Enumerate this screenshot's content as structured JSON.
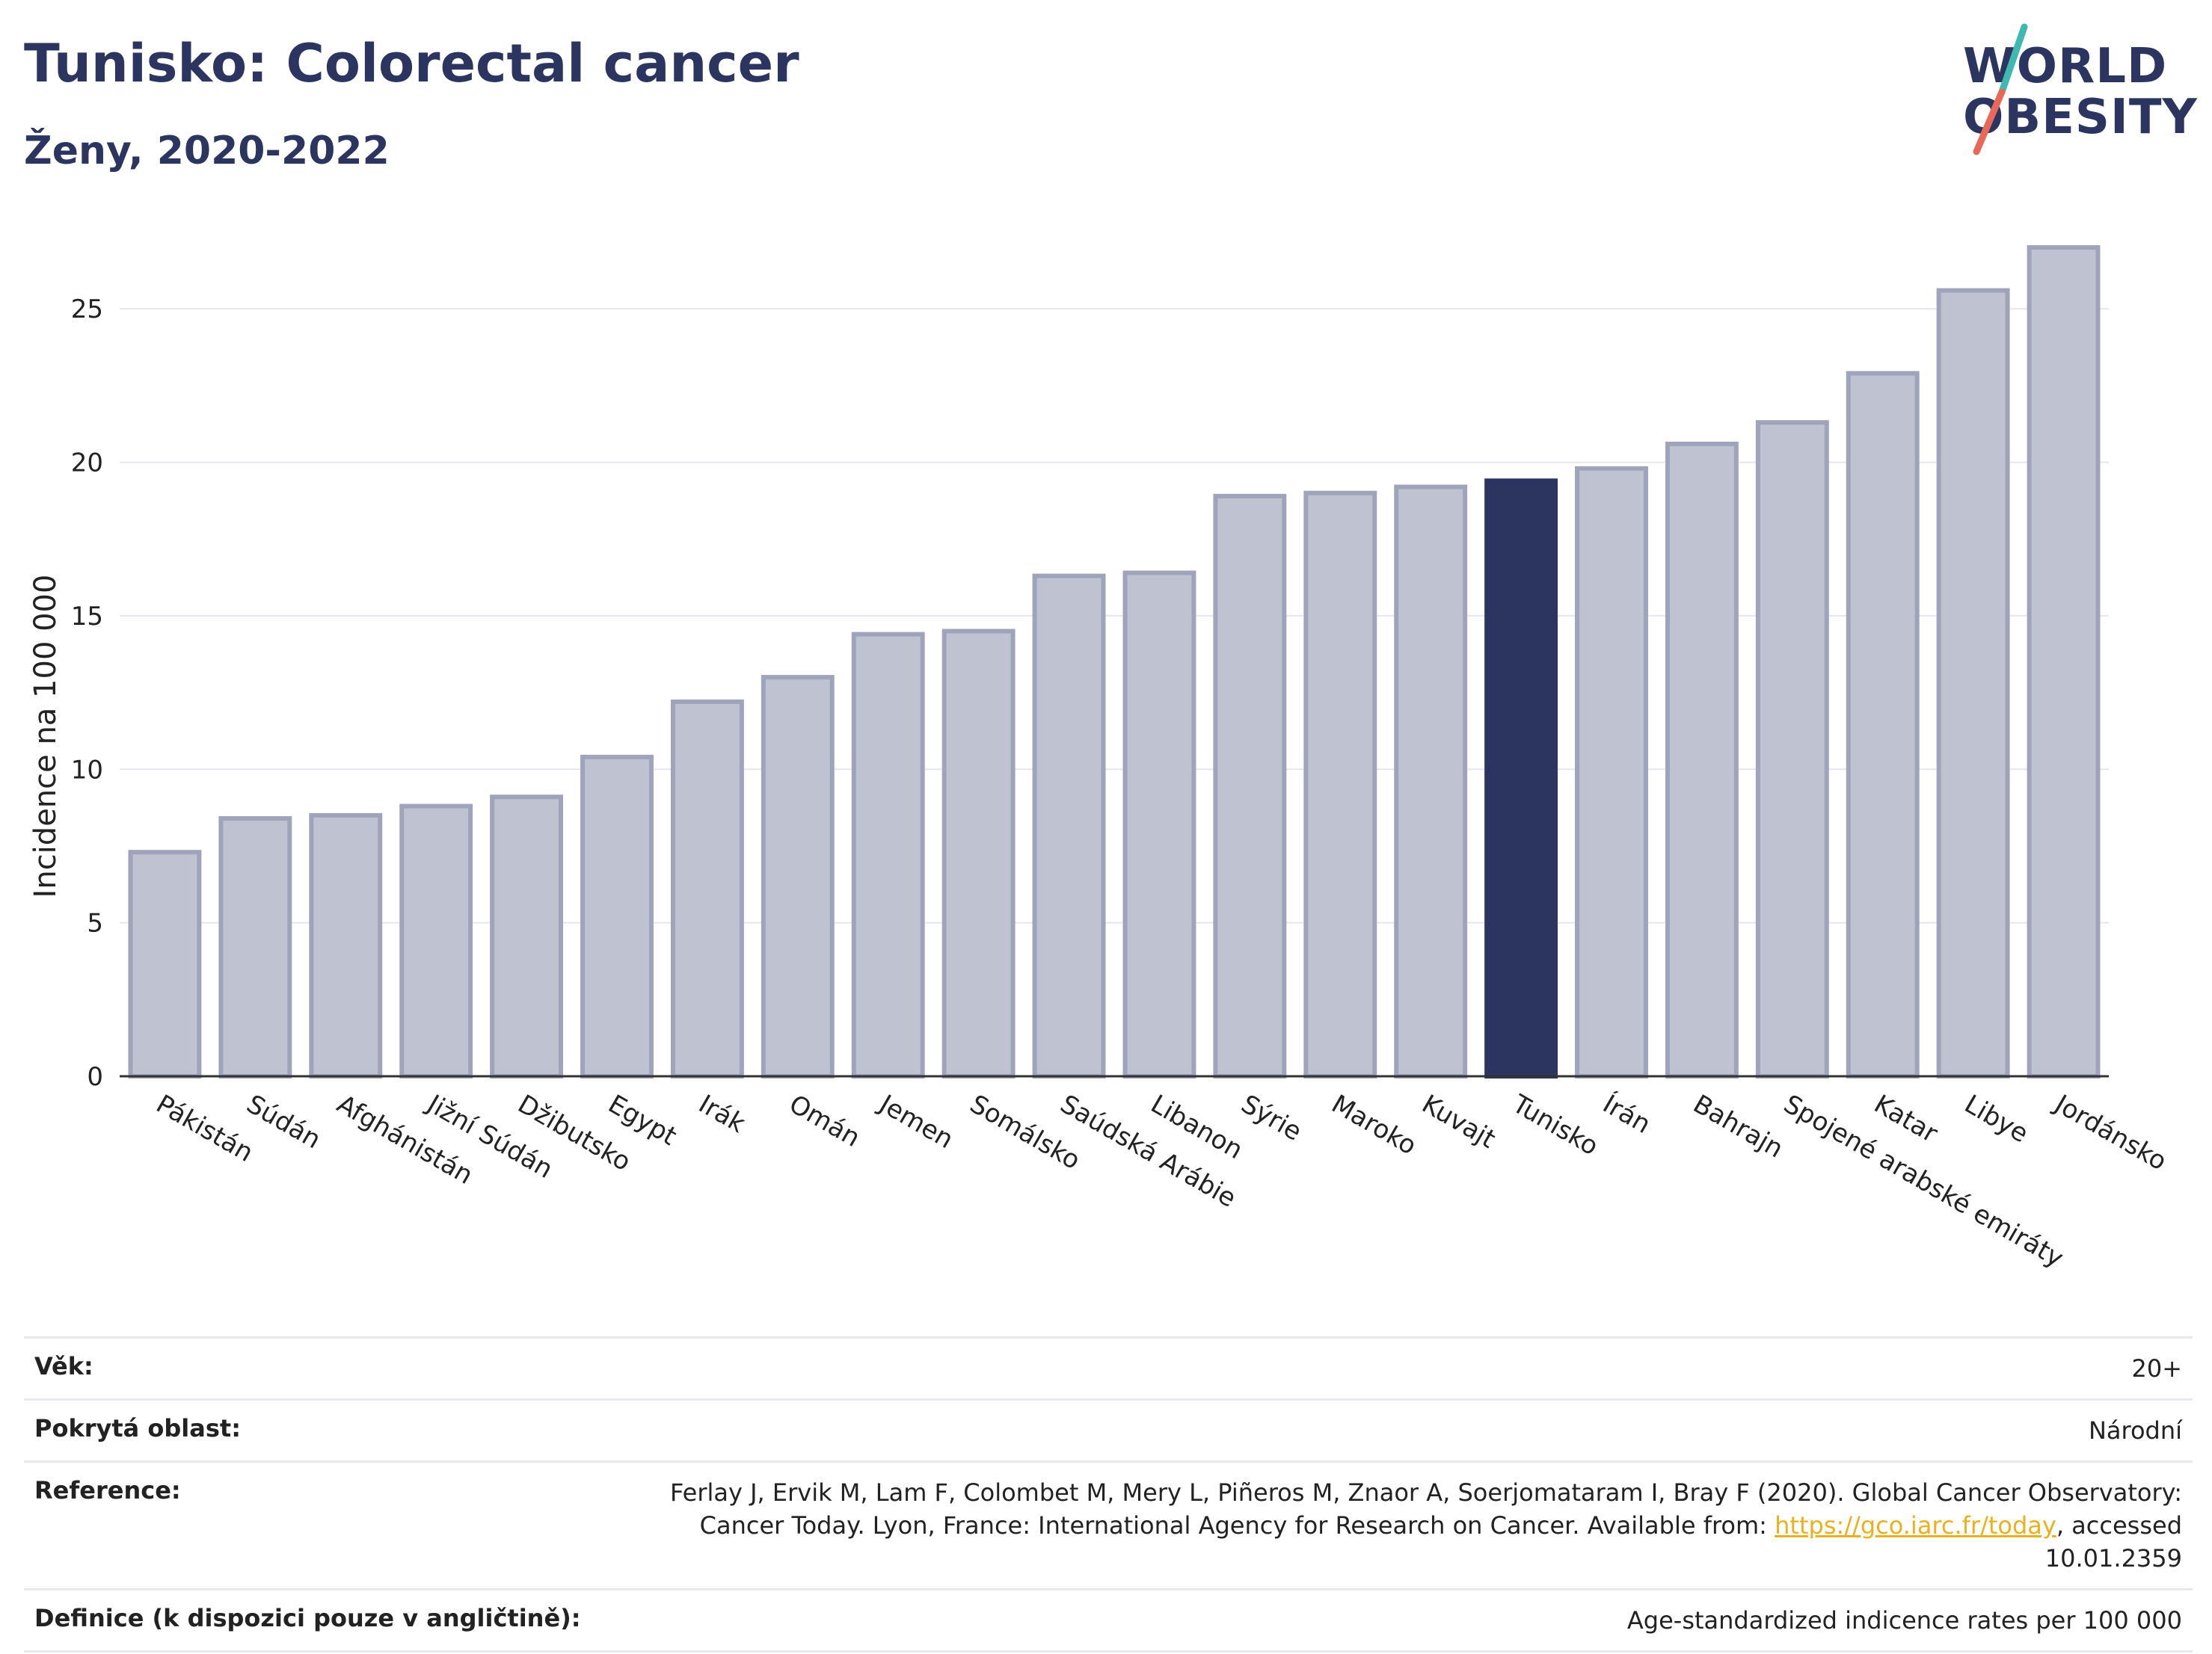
{
  "header": {
    "title": "Tunisko: Colorectal cancer",
    "subtitle": "Ženy, 2020-2022"
  },
  "logo": {
    "line1": "WORLD",
    "line2": "OBESITY",
    "colors": {
      "text": "#2b3560",
      "slash_top": "#3fb8af",
      "slash_bottom": "#e8685a"
    }
  },
  "chart_data": {
    "type": "bar",
    "ylabel": "Incidence na 100 000",
    "ylim": [
      0,
      28
    ],
    "yticks": [
      0,
      5,
      10,
      15,
      20,
      25
    ],
    "grid": true,
    "highlight": "Tunisko",
    "colors": {
      "bar": "#bfc2d0",
      "bar_edge": "#9fa4bb",
      "highlight": "#2b3560"
    },
    "categories": [
      "Pákistán",
      "Súdán",
      "Afghánistán",
      "Jižní Súdán",
      "Džibutsko",
      "Egypt",
      "Irák",
      "Omán",
      "Jemen",
      "Somálsko",
      "Saúdská Arábie",
      "Libanon",
      "Sýrie",
      "Maroko",
      "Kuvajt",
      "Tunisko",
      "Írán",
      "Bahrajn",
      "Spojené arabské emiráty",
      "Katar",
      "Libye",
      "Jordánsko"
    ],
    "values": [
      7.3,
      8.4,
      8.5,
      8.8,
      9.1,
      10.4,
      12.2,
      13.0,
      14.4,
      14.5,
      16.3,
      16.4,
      18.9,
      19.0,
      19.2,
      19.4,
      19.8,
      20.6,
      21.3,
      22.9,
      25.6,
      27.0
    ]
  },
  "meta": {
    "age_label": "Věk:",
    "age_value": "20+",
    "area_label": "Pokrytá oblast:",
    "area_value": "Národní",
    "ref_label": "Reference:",
    "ref_text_1": "Ferlay J, Ervik M, Lam F, Colombet M, Mery L, Piñeros M, Znaor A, Soerjomataram I, Bray F (2020). Global Cancer Observatory: Cancer Today. Lyon, France: International Agency for Research on Cancer. Available from: ",
    "ref_link": "https://gco.iarc.fr/today",
    "ref_text_2": ", accessed 10.01.2359",
    "def_label": "Definice (k dispozici pouze v angličtině):",
    "def_value": "Age-standardized indicence rates per 100 000"
  }
}
